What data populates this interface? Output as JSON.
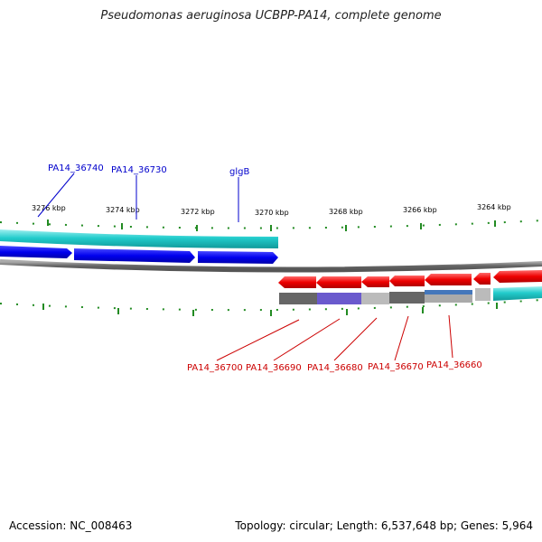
{
  "title": "Pseudomonas aeruginosa UCBPP-PA14, complete genome",
  "footer": {
    "accession": "Accession: NC_008463",
    "summary": "Topology: circular; Length: 6,537,648 bp; Genes: 5,964"
  },
  "scale_labels": [
    "3276 kbp",
    "3274 kbp",
    "3272 kbp",
    "3270 kbp",
    "3268 kbp",
    "3266 kbp",
    "3264 kbp"
  ],
  "forward_gene_labels": [
    "PA14_36740",
    "PA14_36730",
    "glgB"
  ],
  "reverse_gene_labels": [
    "PA14_36700",
    "PA14_36690",
    "PA14_36680",
    "PA14_36670",
    "PA14_36660"
  ],
  "colors": {
    "forward_label": "#0000cc",
    "reverse_label": "#cc0000",
    "forward_cds": "#0000ee",
    "reverse_cds": "#ee0000",
    "gene_band": "#22cccc",
    "backbone": "#777777",
    "tick": "#228b22"
  }
}
